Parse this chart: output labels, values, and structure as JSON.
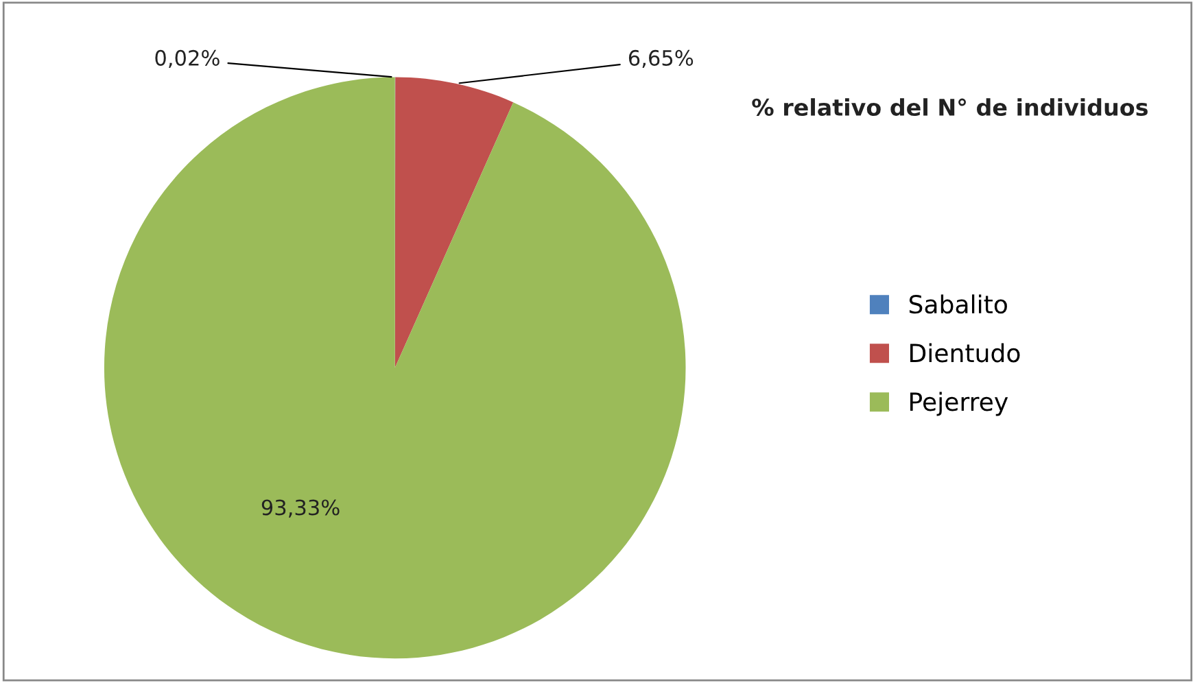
{
  "chart_data": {
    "type": "pie",
    "title": "% relativo del N° de individuos",
    "categories": [
      "Sabalito",
      "Dientudo",
      "Pejerrey"
    ],
    "values": [
      0.02,
      6.65,
      93.33
    ],
    "value_labels": [
      "0,02%",
      "6,65%",
      "93,33%"
    ],
    "colors": [
      "#4f81bd",
      "#c0504d",
      "#9bbb59"
    ],
    "legend": "right"
  }
}
